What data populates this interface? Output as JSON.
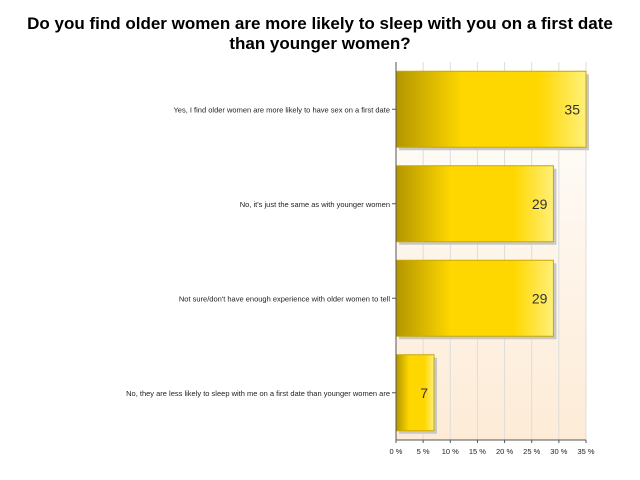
{
  "chart_data": {
    "type": "bar",
    "orientation": "horizontal",
    "title": "Do you find older women are more likely to sleep with you on a first date than younger women?",
    "categories": [
      "Yes, I find older women are more likely to have sex on a first date",
      "No, it's just the same as with younger women",
      "Not sure/don't have enough experience with older women to tell",
      "No, they are less likely to sleep with me on a first date than younger women are"
    ],
    "values": [
      35,
      29,
      29,
      7
    ],
    "xlim": [
      0,
      35
    ],
    "xticks": [
      "0 %",
      "5 %",
      "10 %",
      "15 %",
      "20 %",
      "25 %",
      "30 %",
      "35 %"
    ],
    "grid": true,
    "colors": {
      "bar": "#ffd700",
      "bar_dark": "#b39600",
      "bar_light": "#fff07a",
      "plot_bg_bottom": "#fdebd6"
    }
  }
}
